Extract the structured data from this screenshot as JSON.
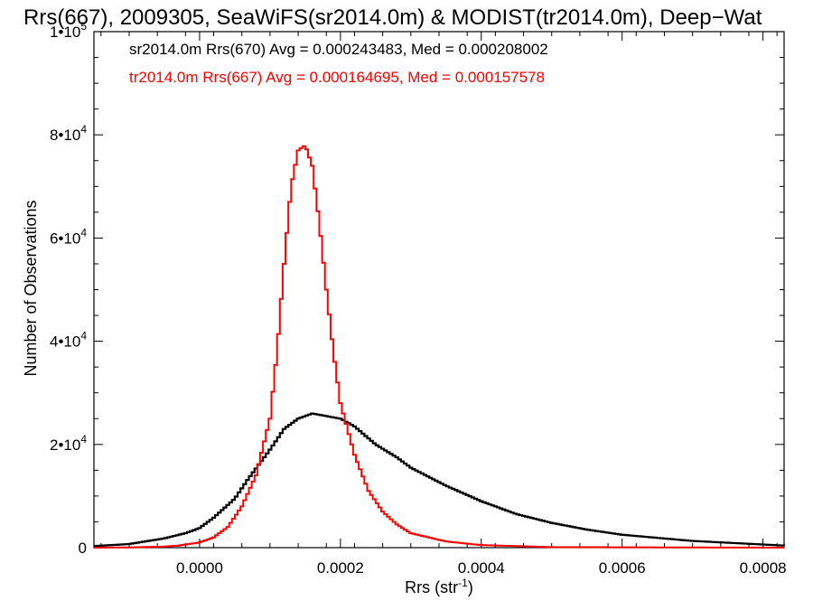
{
  "chart_data": {
    "type": "line",
    "title": "Rrs(667), 2009305, SeaWiFS(sr2014.0m) & MODIST(tr2014.0m), Deep−Wat",
    "xlabel": "Rrs (str",
    "xlabel_sup": "-1",
    "xlabel_end": ")",
    "ylabel": "Number of Observations",
    "xlim": [
      -0.00015,
      0.00083
    ],
    "ylim": [
      0,
      100000
    ],
    "x_ticks": [
      {
        "value": 0.0,
        "label": "0.0000"
      },
      {
        "value": 0.0002,
        "label": "0.0002"
      },
      {
        "value": 0.0004,
        "label": "0.0004"
      },
      {
        "value": 0.0006,
        "label": "0.0006"
      },
      {
        "value": 0.0008,
        "label": "0.0008"
      }
    ],
    "y_ticks": [
      {
        "value": 0,
        "label": "0",
        "sup": ""
      },
      {
        "value": 20000,
        "label": "2•10",
        "sup": "4"
      },
      {
        "value": 40000,
        "label": "4•10",
        "sup": "4"
      },
      {
        "value": 60000,
        "label": "6•10",
        "sup": "4"
      },
      {
        "value": 80000,
        "label": "8•10",
        "sup": "4"
      },
      {
        "value": 100000,
        "label": "1•10",
        "sup": "5"
      }
    ],
    "legend": [
      {
        "text": "sr2014.0m Rrs(670) Avg = 0.000243483, Med = 0.000208002",
        "color": "#000000"
      },
      {
        "text": "tr2014.0m Rrs(667) Avg = 0.000164695, Med = 0.000157578",
        "color": "#ff0000"
      }
    ],
    "legend_position": "top-left",
    "series": [
      {
        "color": "#000000",
        "x": [
          -0.00015,
          -0.0001,
          -5e-05,
          -2e-05,
          0.0,
          2e-05,
          5e-05,
          7e-05,
          0.0001,
          0.00012,
          0.00014,
          0.00016,
          0.00018,
          0.0002,
          0.00022,
          0.00025,
          0.00028,
          0.0003,
          0.00035,
          0.0004,
          0.00045,
          0.0005,
          0.00055,
          0.0006,
          0.0007,
          0.00083
        ],
        "y": [
          300,
          700,
          1800,
          2800,
          3800,
          5800,
          9500,
          13500,
          19000,
          23000,
          25000,
          26000,
          25500,
          25000,
          23500,
          20000,
          17500,
          15500,
          12000,
          9000,
          6500,
          4800,
          3500,
          2500,
          1300,
          400
        ]
      },
      {
        "color": "#ff0000",
        "x": [
          -0.00015,
          -0.0001,
          -5e-05,
          -3e-05,
          0.0,
          2e-05,
          4e-05,
          6e-05,
          8e-05,
          0.0001,
          0.00011,
          0.00012,
          0.00013,
          0.00014,
          0.00015,
          0.00016,
          0.00017,
          0.00018,
          0.00019,
          0.0002,
          0.00022,
          0.00024,
          0.00026,
          0.00028,
          0.0003,
          0.00035,
          0.0004,
          0.0005,
          0.00083
        ],
        "y": [
          0,
          50,
          200,
          400,
          1000,
          2000,
          4000,
          8000,
          14000,
          25000,
          38000,
          55000,
          70000,
          77000,
          78000,
          74000,
          63000,
          50000,
          38000,
          28000,
          18000,
          11000,
          7000,
          4500,
          2800,
          1200,
          500,
          100,
          0
        ]
      }
    ]
  }
}
